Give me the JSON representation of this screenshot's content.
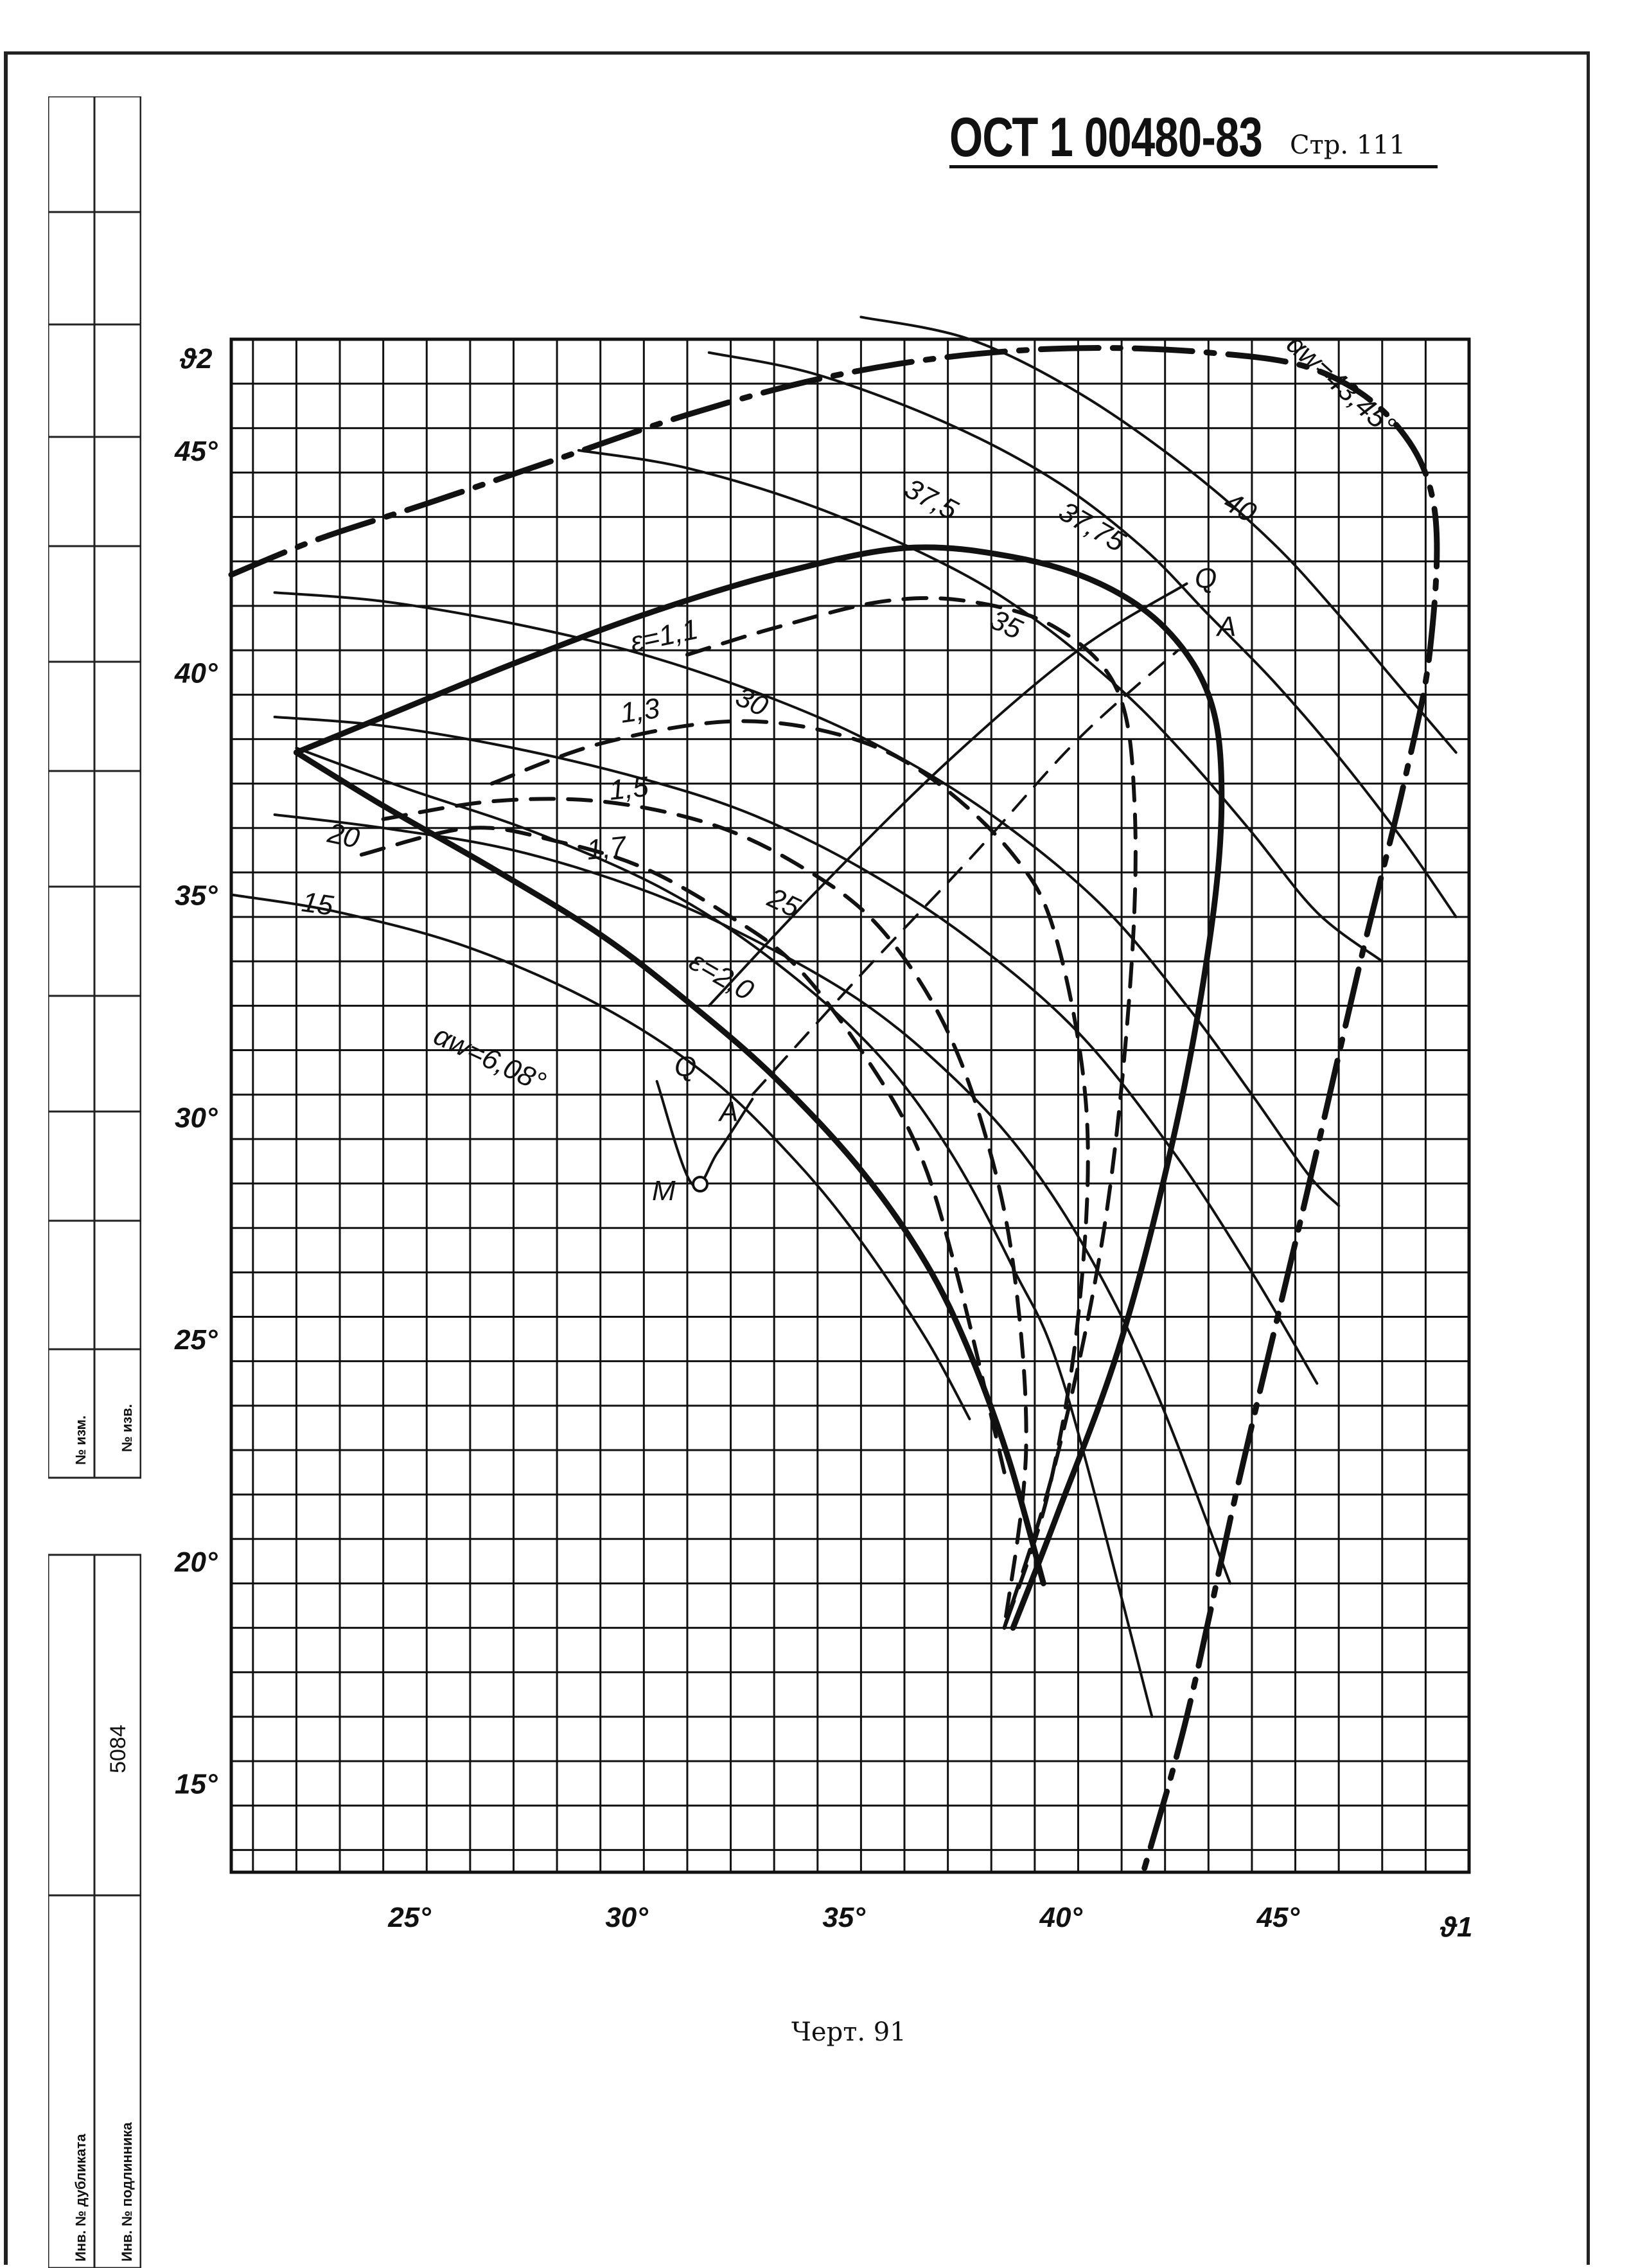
{
  "document": {
    "code": "ОСТ 1 00480-83",
    "page": "Стр. 111",
    "caption": "Черт. 91"
  },
  "side_strip": {
    "labels": [
      "№ изм.",
      "№ изв.",
      "5084",
      "Инв. № дубликата",
      "Инв. № подлинника"
    ]
  },
  "chart_data": {
    "type": "line",
    "title": "",
    "xlabel": "ϑ1",
    "ylabel": "ϑ2",
    "xlim": [
      20.5,
      49
    ],
    "ylim": [
      13,
      47.5
    ],
    "grid": true,
    "x_ticks": [
      "25°",
      "30°",
      "35°",
      "40°",
      "45°"
    ],
    "y_ticks": [
      "15°",
      "20°",
      "25°",
      "30°",
      "35°",
      "40°",
      "45°"
    ],
    "series": [
      {
        "name": "37,5",
        "style": "thin",
        "x": [
          28.5,
          31,
          34,
          37,
          39,
          41,
          42.5,
          44,
          45.5,
          47
        ],
        "y": [
          45,
          44.6,
          43.7,
          42.4,
          41.2,
          39.6,
          38.1,
          36.4,
          34.6,
          33.5
        ]
      },
      {
        "name": "37,75",
        "style": "thin",
        "x": [
          31.5,
          34,
          37,
          39.5,
          41.5,
          43,
          44.5,
          46,
          47.5,
          48.7
        ],
        "y": [
          47.2,
          46.7,
          45.6,
          44.3,
          42.8,
          41.3,
          39.8,
          38.1,
          36.2,
          34.5
        ]
      },
      {
        "name": "40",
        "style": "thin",
        "x": [
          35,
          37.5,
          40,
          42.5,
          44.5,
          46,
          47.3,
          48.7
        ],
        "y": [
          48,
          47.5,
          46.3,
          44.6,
          42.9,
          41.3,
          39.8,
          38.2
        ]
      },
      {
        "name": "35",
        "style": "thin",
        "x": [
          21.5,
          24,
          27,
          30,
          33,
          35.5,
          38,
          40.5,
          42.5,
          44,
          45.3,
          46
        ],
        "y": [
          41.8,
          41.6,
          41.1,
          40.4,
          39.4,
          38.3,
          36.8,
          34.8,
          32.5,
          30.5,
          28.7,
          28
        ]
      },
      {
        "name": "30",
        "style": "thin",
        "x": [
          21.5,
          24,
          27,
          30,
          32.5,
          35,
          37.5,
          40,
          42.2,
          44,
          45.5
        ],
        "y": [
          39,
          38.8,
          38.3,
          37.6,
          36.8,
          35.6,
          34,
          31.9,
          29.2,
          26.5,
          24
        ]
      },
      {
        "name": "25",
        "style": "thin",
        "x": [
          21.5,
          24,
          27,
          30,
          32.5,
          35,
          37,
          38.7,
          40.3,
          41.8,
          43.5
        ],
        "y": [
          36.8,
          36.5,
          36,
          35.1,
          34,
          32.6,
          31,
          29.2,
          26.8,
          23.8,
          19.5
        ]
      },
      {
        "name": "20",
        "style": "thin",
        "x": [
          22,
          24.5,
          27.5,
          30.5,
          33,
          35.3,
          37,
          38.5,
          39.7,
          41.7
        ],
        "y": [
          38.3,
          37.4,
          36.4,
          35.1,
          33.5,
          31.5,
          29.3,
          26.6,
          23.9,
          16.5
        ]
      },
      {
        "name": "15",
        "style": "thin",
        "x": [
          20.5,
          23,
          26,
          29,
          31.5,
          33.5,
          35,
          36.5,
          37.5
        ],
        "y": [
          35,
          34.6,
          33.8,
          32.5,
          30.9,
          29,
          27.2,
          25,
          23.2
        ]
      },
      {
        "name": "αw=43,45°",
        "style": "thick-dash-dot",
        "x": [
          20.5,
          22.5,
          25,
          28,
          31,
          34,
          37,
          40,
          43,
          45.5,
          47.3,
          48.2,
          48.1,
          47.5,
          46.5,
          45.2,
          43.7,
          42.5,
          41.5
        ],
        "y": [
          42.2,
          43,
          43.8,
          44.8,
          45.8,
          46.6,
          47.1,
          47.3,
          47.2,
          46.8,
          45.6,
          43.7,
          40.5,
          37.5,
          33.5,
          28,
          21.8,
          16.5,
          13
        ]
      },
      {
        "name": "ε=1,1",
        "style": "thick",
        "x": [
          22,
          24,
          27,
          30,
          33,
          36,
          38.5,
          40.5,
          42,
          43,
          43.3,
          43.1,
          42.3,
          41,
          39.5,
          38.5
        ],
        "y": [
          38.2,
          39,
          40.2,
          41.3,
          42.2,
          42.8,
          42.6,
          42,
          41,
          39.5,
          37.5,
          34.5,
          30,
          25,
          21,
          18.5
        ]
      },
      {
        "name": "ε=1,3",
        "style": "dashed",
        "x": [
          31,
          33,
          35.5,
          37.5,
          39.5,
          40.9,
          41.3,
          41.2,
          40.6,
          39.5,
          38.3
        ],
        "y": [
          40.4,
          41,
          41.6,
          41.6,
          41,
          39.6,
          37,
          33,
          27.5,
          22.3,
          18.5
        ]
      },
      {
        "name": "ε=1,5",
        "style": "dashed",
        "x": [
          26.5,
          29,
          32,
          34.5,
          36.5,
          38.5,
          39.5,
          40.2,
          40,
          39.3,
          38.3
        ],
        "y": [
          37.5,
          38.4,
          38.9,
          38.6,
          37.7,
          35.9,
          34,
          30,
          25.5,
          21.5,
          18.5
        ]
      },
      {
        "name": "ε=1,7",
        "style": "dashed",
        "x": [
          24,
          26.5,
          29,
          31.5,
          33.5,
          35.3,
          36.8,
          37.8,
          38.5,
          38.8,
          38.3
        ],
        "y": [
          36.7,
          37.1,
          37.1,
          36.6,
          35.7,
          34.4,
          32.3,
          29.8,
          26.7,
          22.5,
          18.5
        ]
      },
      {
        "name": "ε=2,0",
        "style": "dashed",
        "x": [
          23.5,
          26,
          28,
          30,
          32,
          33.5,
          35,
          36.3,
          37.2,
          38.3
        ],
        "y": [
          35.9,
          36.5,
          36.2,
          35.6,
          34.5,
          33.4,
          31.5,
          29.3,
          26.5,
          22
        ]
      },
      {
        "name": "αw=6,08°",
        "style": "thick",
        "x": [
          22,
          24,
          26.5,
          29,
          31,
          33,
          35,
          36.5,
          37.5,
          38.4,
          39.2
        ],
        "y": [
          38.2,
          37,
          35.6,
          34.1,
          32.6,
          30.9,
          28.8,
          26.7,
          24.7,
          22.3,
          19.5
        ]
      },
      {
        "name": "Q",
        "style": "thin",
        "x": [
          31.5,
          34,
          37,
          40,
          42.5
        ],
        "y": [
          32.5,
          35.1,
          38,
          40.5,
          42
        ]
      },
      {
        "name": "A",
        "style": "dashed-thin",
        "x": [
          32.5,
          35,
          37.5,
          40,
          42.3
        ],
        "y": [
          30.5,
          33.2,
          35.8,
          38.5,
          40.5
        ]
      },
      {
        "name": "M",
        "style": "thin",
        "x": [
          30.3,
          31.1,
          31.7,
          32.5
        ],
        "y": [
          30.8,
          28.5,
          29.2,
          30.4
        ]
      }
    ],
    "annotations": [
      "37,5",
      "37,75",
      "40",
      "35",
      "30",
      "25",
      "20",
      "15",
      "αw=43,45°",
      "ε=1,1",
      "1,3",
      "1,5",
      "1,7",
      "ε=2,0",
      "αw=6,08°",
      "Q",
      "A",
      "Q",
      "A",
      "M"
    ]
  }
}
